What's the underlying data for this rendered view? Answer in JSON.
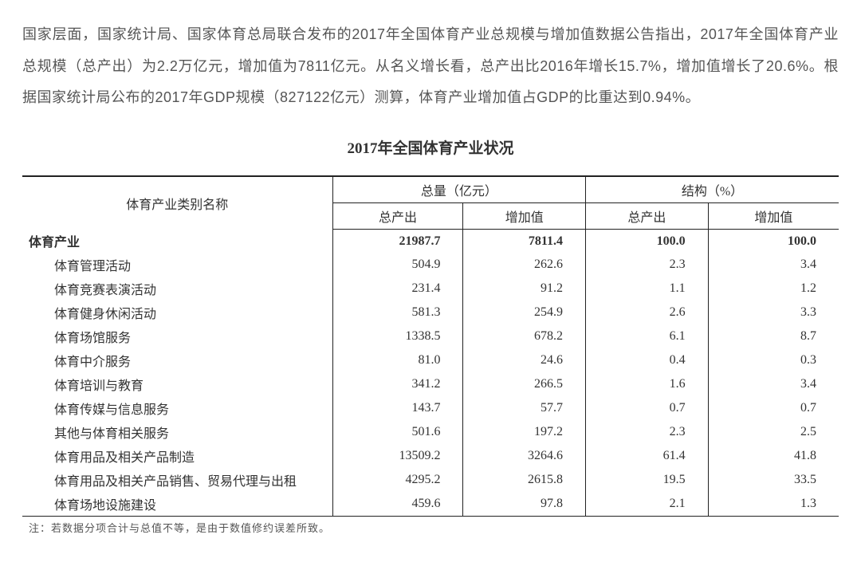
{
  "paragraph": "国家层面，国家统计局、国家体育总局联合发布的2017年全国体育产业总规模与增加值数据公告指出，2017年全国体育产业总规模（总产出）为2.2万亿元，增加值为7811亿元。从名义增长看，总产出比2016年增长15.7%，增加值增长了20.6%。根据国家统计局公布的2017年GDP规模（827122亿元）测算，体育产业增加值占GDP的比重达到0.94%。",
  "tableTitle": "2017年全国体育产业状况",
  "headers": {
    "nameCol": "体育产业类别名称",
    "group1": "总量（亿元）",
    "group2": "结构（%）",
    "sub1": "总产出",
    "sub2": "增加值",
    "sub3": "总产出",
    "sub4": "增加值"
  },
  "rows": [
    {
      "name": "体育产业",
      "v1": "21987.7",
      "v2": "7811.4",
      "v3": "100.0",
      "v4": "100.0",
      "bold": true
    },
    {
      "name": "体育管理活动",
      "v1": "504.9",
      "v2": "262.6",
      "v3": "2.3",
      "v4": "3.4"
    },
    {
      "name": "体育竞赛表演活动",
      "v1": "231.4",
      "v2": "91.2",
      "v3": "1.1",
      "v4": "1.2"
    },
    {
      "name": "体育健身休闲活动",
      "v1": "581.3",
      "v2": "254.9",
      "v3": "2.6",
      "v4": "3.3"
    },
    {
      "name": "体育场馆服务",
      "v1": "1338.5",
      "v2": "678.2",
      "v3": "6.1",
      "v4": "8.7"
    },
    {
      "name": "体育中介服务",
      "v1": "81.0",
      "v2": "24.6",
      "v3": "0.4",
      "v4": "0.3"
    },
    {
      "name": "体育培训与教育",
      "v1": "341.2",
      "v2": "266.5",
      "v3": "1.6",
      "v4": "3.4"
    },
    {
      "name": "体育传媒与信息服务",
      "v1": "143.7",
      "v2": "57.7",
      "v3": "0.7",
      "v4": "0.7"
    },
    {
      "name": "其他与体育相关服务",
      "v1": "501.6",
      "v2": "197.2",
      "v3": "2.3",
      "v4": "2.5"
    },
    {
      "name": "体育用品及相关产品制造",
      "v1": "13509.2",
      "v2": "3264.6",
      "v3": "61.4",
      "v4": "41.8"
    },
    {
      "name": "体育用品及相关产品销售、贸易代理与出租",
      "v1": "4295.2",
      "v2": "2615.8",
      "v3": "19.5",
      "v4": "33.5"
    },
    {
      "name": "体育场地设施建设",
      "v1": "459.6",
      "v2": "97.8",
      "v3": "2.1",
      "v4": "1.3"
    }
  ],
  "footnote": "注：若数据分项合计与总值不等，是由于数值修约误差所致。",
  "colors": {
    "text": "#555555",
    "tableText": "#333333",
    "border": "#222222",
    "background": "#ffffff"
  },
  "fontsizes": {
    "paragraph": 18,
    "tableTitle": 19,
    "table": 16,
    "footnote": 13
  }
}
